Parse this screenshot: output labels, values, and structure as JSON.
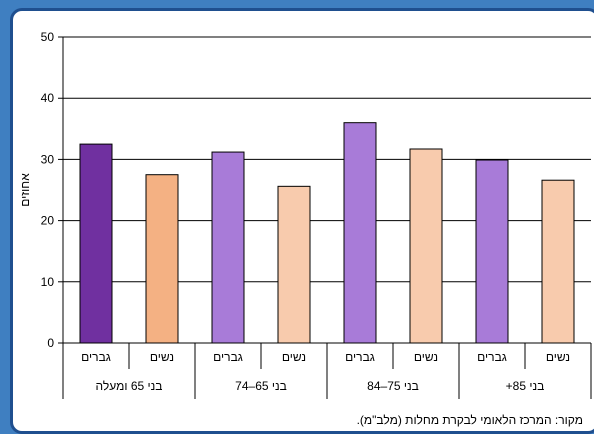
{
  "chart_data": {
    "type": "bar",
    "ylabel": "אחוזים",
    "ylim": [
      0,
      50
    ],
    "yticks": [
      0,
      10,
      20,
      30,
      40,
      50
    ],
    "groups": [
      "בני 65 ומעלה",
      "בני 65–74",
      "בני 75–84",
      "בני 85+"
    ],
    "categories": [
      "גברים",
      "נשים",
      "גברים",
      "נשים",
      "גברים",
      "נשים",
      "גברים",
      "נשים"
    ],
    "values": [
      32.5,
      27.5,
      31.2,
      25.6,
      36.0,
      31.7,
      29.9,
      26.6
    ],
    "colors": [
      "#7030a0",
      "#f4b183",
      "#a87bd8",
      "#f8cbad",
      "#a87bd8",
      "#f8cbad",
      "#a87bd8",
      "#f8cbad"
    ],
    "grid": true
  },
  "source": "מקור: המרכז הלאומי לבקרת מחלות (מלב\"מ)."
}
